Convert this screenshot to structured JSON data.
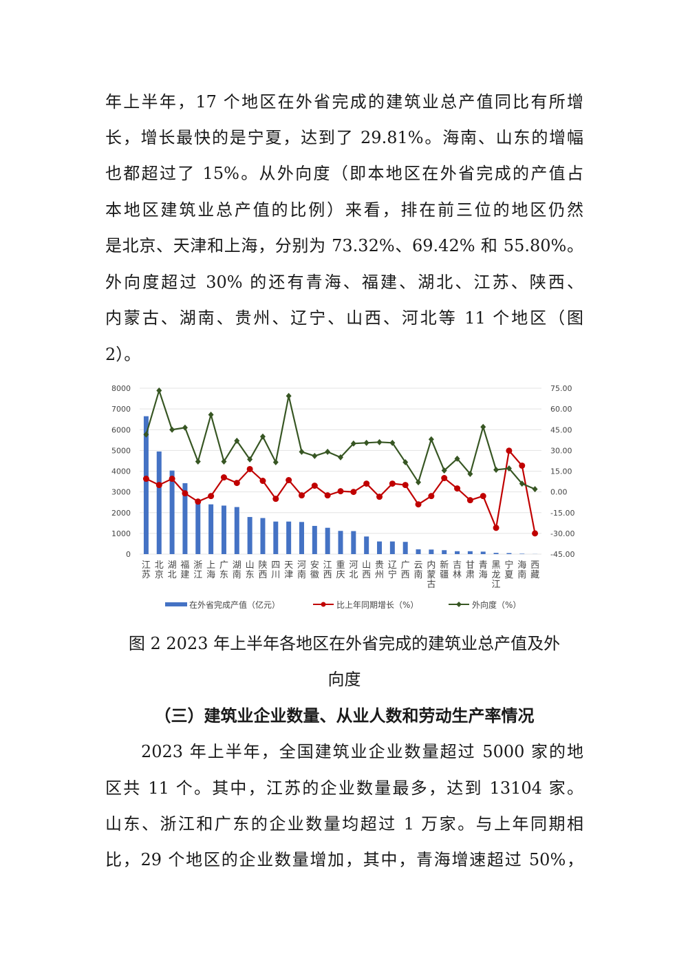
{
  "paragraph1": [
    "年上半年，17 个地区在外省完成的建筑业总产值同比有所增",
    "长，增长最快的是宁夏，达到了 29.81%。海南、山东的增幅",
    "也都超过了 15%。从外向度（即本地区在外省完成的产值占",
    "本地区建筑业总产值的比例）来看，排在前三位的地区仍然",
    "是北京、天津和上海，分别为 73.32%、69.42% 和 55.80%。",
    "外向度超过 30% 的还有青海、福建、湖北、江苏、陕西、",
    "内蒙古、湖南、贵州、辽宁、山西、河北等 11 个地区（图",
    "2）。"
  ],
  "caption": [
    "图 2 2023 年上半年各地区在外省完成的建筑业总产值及外",
    "向度"
  ],
  "section_heading": "（三）建筑业企业数量、从业人数和劳动生产率情况",
  "paragraph2": [
    "2023 年上半年，全国建筑业企业数量超过 5000 家的地",
    "区共 11 个。其中，江苏的企业数量最多，达到 13104 家。",
    "山东、浙江和广东的企业数量均超过 1 万家。与上年同期相",
    "比，29 个地区的企业数量增加，其中，青海增速超过 50%，"
  ],
  "chart_data": {
    "type": "bar+line",
    "categories": [
      "江苏",
      "北京",
      "湖北",
      "福建",
      "浙江",
      "上海",
      "广东",
      "湖南",
      "山东",
      "陕西",
      "四川",
      "天津",
      "河南",
      "安徽",
      "江西",
      "重庆",
      "河北",
      "山西",
      "贵州",
      "辽宁",
      "广西",
      "云南",
      "内蒙古",
      "新疆",
      "吉林",
      "甘肃",
      "青海",
      "黑龙江",
      "宁夏",
      "海南",
      "西藏"
    ],
    "series": [
      {
        "name": "在外省完成产值（亿元）",
        "type": "bar",
        "axis": "left",
        "color": "#4472c4",
        "values": [
          6650,
          4950,
          4030,
          3420,
          2600,
          2400,
          2340,
          2270,
          1790,
          1740,
          1570,
          1570,
          1550,
          1360,
          1270,
          1120,
          1110,
          850,
          610,
          610,
          590,
          230,
          220,
          190,
          140,
          140,
          120,
          60,
          50,
          20,
          5
        ]
      },
      {
        "name": "比上年同期增长（%）",
        "type": "line",
        "axis": "right",
        "color": "#c00000",
        "values": [
          9.5,
          5,
          9.5,
          -1,
          -7,
          -3,
          10.5,
          6.5,
          16.5,
          8,
          -5,
          8.5,
          -2.5,
          4.5,
          -2.5,
          0.5,
          0,
          6,
          -3.5,
          6,
          5,
          -9,
          -3,
          10,
          2.5,
          -6,
          -3,
          -26,
          29.81,
          19,
          -30
        ]
      },
      {
        "name": "外向度（%）",
        "type": "line",
        "axis": "right",
        "color": "#375623",
        "values": [
          41.5,
          73.32,
          45,
          46.5,
          22,
          55.8,
          22,
          37,
          23.5,
          40,
          21.5,
          69.42,
          29,
          26,
          29,
          25,
          35,
          35.5,
          36,
          35.5,
          21.5,
          7,
          38,
          15.5,
          24,
          13,
          47,
          16,
          17,
          6,
          2
        ]
      }
    ],
    "left_axis": {
      "range": [
        0,
        8000
      ],
      "ticks": [
        "0",
        "1000",
        "2000",
        "3000",
        "4000",
        "5000",
        "6000",
        "7000",
        "8000"
      ]
    },
    "right_axis": {
      "range": [
        -45,
        75
      ],
      "ticks": [
        "-45.00",
        "-30.00",
        "-15.00",
        "0.00",
        "15.00",
        "30.00",
        "45.00",
        "60.00",
        "75.00"
      ]
    },
    "grid": true,
    "legend": "bottom"
  }
}
